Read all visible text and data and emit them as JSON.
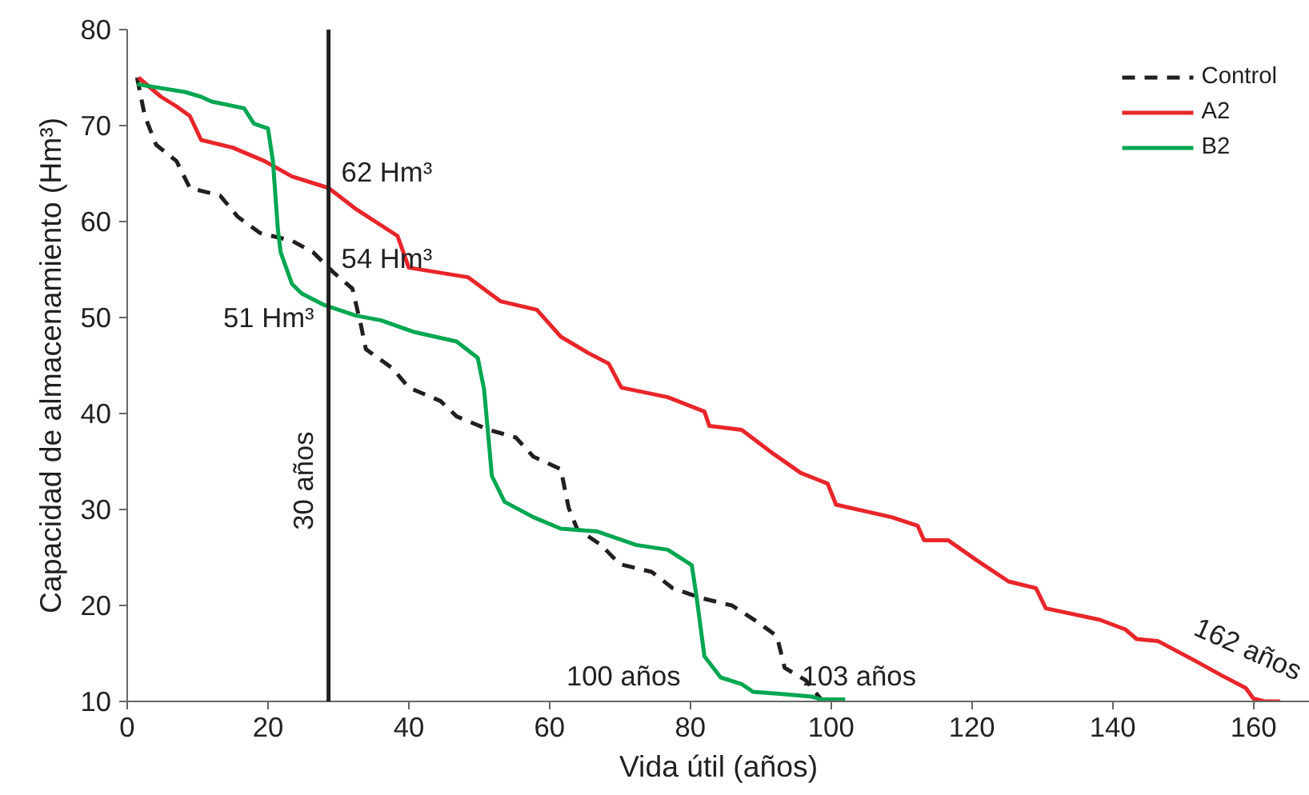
{
  "chart_data": {
    "type": "line",
    "xlabel": "Vida útil (años)",
    "ylabel": "Capacidad de almacenamiento (Hm³)",
    "xlim": [
      0,
      168
    ],
    "ylim": [
      10,
      80
    ],
    "xticks": [
      0,
      20,
      40,
      60,
      80,
      100,
      120,
      140,
      160
    ],
    "yticks": [
      10,
      20,
      30,
      40,
      50,
      60,
      70,
      80
    ],
    "grid": false,
    "legend": "top right",
    "marker": "none",
    "series": [
      {
        "name": "Control",
        "color": "#231f20",
        "line_style": "dashed",
        "x": [
          1.4,
          2.5,
          4.1,
          7,
          8.9,
          13.2,
          15.7,
          18.9,
          23.4,
          26.4,
          29.3,
          32,
          33.2,
          33.9,
          37.7,
          40,
          44.5,
          46.8,
          51.4,
          55.2,
          57.7,
          61.6,
          62.7,
          63.9,
          67.3,
          70,
          74.5,
          77.5,
          81.4,
          85.9,
          89.5,
          92.3,
          93.4,
          96.4,
          98.6,
          99.5
        ],
        "values": [
          75,
          71,
          68,
          66.3,
          63.5,
          62.7,
          60.5,
          58.8,
          58,
          56.8,
          54.7,
          53,
          49.2,
          46.7,
          44.7,
          42.7,
          41.3,
          39.7,
          38.3,
          37.5,
          35.5,
          34.2,
          30.2,
          28,
          26.3,
          24.3,
          23.5,
          21.8,
          20.8,
          20,
          18.3,
          16.8,
          13.5,
          12.2,
          10.2,
          10
        ]
      },
      {
        "name": "A2",
        "color": "#e8262a",
        "line_style": "solid",
        "x": [
          1.6,
          4.8,
          7,
          8.9,
          10.5,
          15,
          19.5,
          23.4,
          28.6,
          32.5,
          38.4,
          40,
          48.4,
          53,
          58.2,
          61.6,
          65.5,
          68.4,
          70.2,
          76.8,
          82,
          82.7,
          87.3,
          91.8,
          95.7,
          99.5,
          100.7,
          108.6,
          112.3,
          113.2,
          116.6,
          120.7,
          125.2,
          129.1,
          130.5,
          138.2,
          141.8,
          143.4,
          146.4,
          151.8,
          155.5,
          158.9,
          160,
          161.6,
          163.8
        ],
        "values": [
          75,
          73,
          72,
          71,
          68.5,
          67.7,
          66.3,
          64.7,
          63.5,
          61.3,
          58.5,
          55.2,
          54.2,
          51.7,
          50.8,
          48,
          46.3,
          45.2,
          42.7,
          41.7,
          40.2,
          38.7,
          38.3,
          35.8,
          33.8,
          32.7,
          30.5,
          29.2,
          28.3,
          26.8,
          26.8,
          24.7,
          22.5,
          21.8,
          19.7,
          18.5,
          17.5,
          16.5,
          16.3,
          14.2,
          12.7,
          11.4,
          10.3,
          10,
          10
        ]
      },
      {
        "name": "B2",
        "color": "#00a651",
        "line_style": "solid",
        "x": [
          1.4,
          8.2,
          10.5,
          12,
          16.6,
          18,
          20,
          20.7,
          21.4,
          21.8,
          23.4,
          24.8,
          28,
          32.5,
          36.1,
          40.7,
          46.8,
          49.8,
          50.7,
          51.4,
          51.8,
          53.6,
          57.7,
          61.6,
          66.8,
          72.3,
          76.8,
          80.2,
          80.9,
          82,
          84.3,
          87.3,
          88.9,
          92.7,
          97.3,
          98.6,
          102
        ],
        "values": [
          74.3,
          73.5,
          73,
          72.5,
          71.8,
          70.2,
          69.7,
          66.3,
          59.2,
          56.8,
          53.5,
          52.5,
          51.3,
          50.2,
          49.7,
          48.5,
          47.5,
          45.8,
          42.5,
          36.8,
          33.5,
          30.8,
          29.2,
          28,
          27.7,
          26.3,
          25.8,
          24.2,
          20.8,
          14.7,
          12.5,
          11.8,
          11,
          10.8,
          10.5,
          10.2,
          10.2
        ]
      }
    ],
    "ref_lines": [
      {
        "axis": "x",
        "value": 28.6,
        "label": "30 años",
        "color": "#231f20"
      }
    ],
    "annotations": [
      {
        "text": "62 Hm³",
        "x": 28.6,
        "y": 63.5
      },
      {
        "text": "54 Hm³",
        "x": 28.6,
        "y": 54.7
      },
      {
        "text": "51 Hm³",
        "x": 28.6,
        "y": 51.3
      },
      {
        "text": "100 años",
        "x": 84.3,
        "y": 12.5
      },
      {
        "text": "103 años",
        "x": 99.5,
        "y": 10
      },
      {
        "text": "162 años",
        "x": 163.8,
        "y": 10
      }
    ]
  }
}
